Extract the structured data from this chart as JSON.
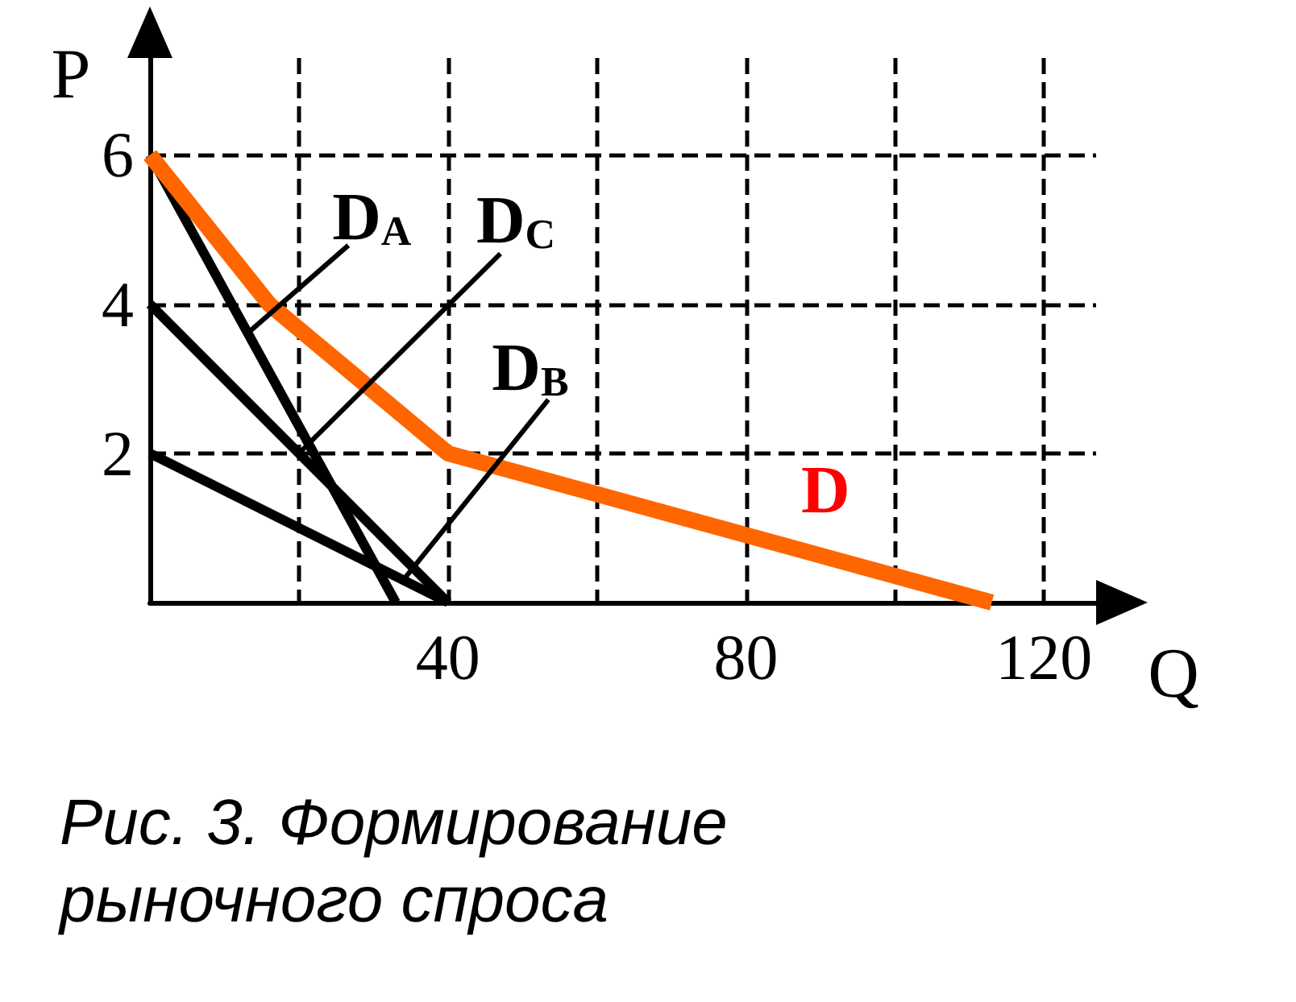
{
  "chart_data": {
    "type": "line",
    "title": "Рис. 3. Формирование рыночного спроса",
    "xlabel": "Q",
    "ylabel": "P",
    "xlim": [
      0,
      127
    ],
    "ylim": [
      0,
      7.3
    ],
    "xticks": [
      {
        "value": 20,
        "label": null
      },
      40,
      {
        "value": 60,
        "label": null
      },
      80,
      {
        "value": 100,
        "label": null
      },
      120
    ],
    "yticks": [
      2,
      4,
      6
    ],
    "grid": true,
    "series": [
      {
        "color": "#000000",
        "x": [
          0,
          33
        ],
        "values": [
          6,
          0
        ]
      },
      {
        "color": "#000000",
        "x": [
          0,
          40
        ],
        "values": [
          4,
          0
        ]
      },
      {
        "color": "#000000",
        "x": [
          0,
          40
        ],
        "values": [
          2,
          0
        ]
      },
      {
        "color": "#ff6600",
        "x": [
          0,
          16,
          40,
          113
        ],
        "values": [
          6,
          4,
          2,
          0
        ]
      }
    ],
    "annotations": [
      {
        "text": "D$_{A}$",
        "x": 13,
        "y": 3.6
      },
      {
        "text": "D$_{C}$",
        "x": 20,
        "y": 2
      },
      {
        "text": "D$_{B}$",
        "x": 34,
        "y": 0.3
      },
      {
        "text": "D",
        "x": 90,
        "y": 0.6
      }
    ]
  }
}
